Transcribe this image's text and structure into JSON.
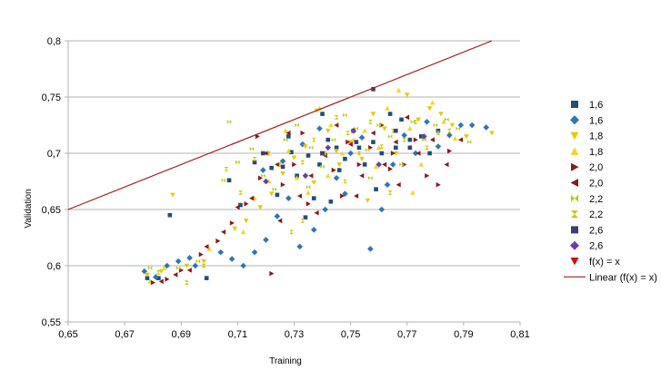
{
  "chart_data": {
    "type": "scatter",
    "xlabel": "Training",
    "ylabel": "Validation",
    "xlim": [
      0.65,
      0.81
    ],
    "ylim": [
      0.55,
      0.8
    ],
    "x_ticks": [
      0.65,
      0.67,
      0.69,
      0.71,
      0.73,
      0.75,
      0.77,
      0.79,
      0.81
    ],
    "x_tick_labels": [
      "0,65",
      "0,67",
      "0,69",
      "0,71",
      "0,73",
      "0,75",
      "0,77",
      "0,79",
      "0,81"
    ],
    "y_ticks": [
      0.55,
      0.6,
      0.65,
      0.7,
      0.75,
      0.8
    ],
    "y_tick_labels": [
      "0,55",
      "0,6",
      "0,65",
      "0,7",
      "0,75",
      "0,8"
    ],
    "grid": "horizontal",
    "legend_position": "right",
    "series": [
      {
        "name": "1,6",
        "marker": "square",
        "color": "#1f4e79",
        "points": [
          [
            0.678,
            0.589
          ],
          [
            0.682,
            0.589
          ],
          [
            0.686,
            0.645
          ],
          [
            0.699,
            0.589
          ],
          [
            0.707,
            0.676
          ],
          [
            0.711,
            0.654
          ],
          [
            0.716,
            0.692
          ],
          [
            0.719,
            0.7
          ],
          [
            0.724,
            0.663
          ],
          [
            0.728,
            0.715
          ],
          [
            0.731,
            0.68
          ],
          [
            0.734,
            0.643
          ],
          [
            0.737,
            0.66
          ],
          [
            0.739,
            0.69
          ],
          [
            0.74,
            0.735
          ],
          [
            0.742,
            0.712
          ],
          [
            0.745,
            0.705
          ],
          [
            0.748,
            0.695
          ],
          [
            0.751,
            0.72
          ],
          [
            0.753,
            0.705
          ],
          [
            0.755,
            0.69
          ],
          [
            0.758,
            0.71
          ],
          [
            0.761,
            0.7
          ],
          [
            0.764,
            0.735
          ],
          [
            0.766,
            0.705
          ],
          [
            0.768,
            0.73
          ],
          [
            0.771,
            0.712
          ],
          [
            0.775,
            0.715
          ],
          [
            0.778,
            0.7
          ],
          [
            0.781,
            0.72
          ],
          [
            0.746,
            0.685
          ],
          [
            0.735,
            0.698
          ],
          [
            0.759,
            0.668
          ],
          [
            0.722,
            0.687
          ],
          [
            0.743,
            0.657
          ],
          [
            0.729,
            0.701
          ]
        ]
      },
      {
        "name": "1,6",
        "marker": "diamond",
        "color": "#2e75b6",
        "points": [
          [
            0.677,
            0.595
          ],
          [
            0.681,
            0.59
          ],
          [
            0.685,
            0.6
          ],
          [
            0.689,
            0.604
          ],
          [
            0.693,
            0.607
          ],
          [
            0.695,
            0.6
          ],
          [
            0.704,
            0.612
          ],
          [
            0.708,
            0.606
          ],
          [
            0.712,
            0.6
          ],
          [
            0.716,
            0.612
          ],
          [
            0.72,
            0.623
          ],
          [
            0.724,
            0.644
          ],
          [
            0.728,
            0.66
          ],
          [
            0.732,
            0.617
          ],
          [
            0.737,
            0.632
          ],
          [
            0.741,
            0.65
          ],
          [
            0.745,
            0.678
          ],
          [
            0.75,
            0.7
          ],
          [
            0.754,
            0.714
          ],
          [
            0.757,
            0.615
          ],
          [
            0.761,
            0.65
          ],
          [
            0.765,
            0.69
          ],
          [
            0.769,
            0.716
          ],
          [
            0.773,
            0.7
          ],
          [
            0.777,
            0.728
          ],
          [
            0.781,
            0.706
          ],
          [
            0.785,
            0.716
          ],
          [
            0.789,
            0.725
          ],
          [
            0.793,
            0.725
          ],
          [
            0.798,
            0.723
          ],
          [
            0.739,
            0.722
          ],
          [
            0.726,
            0.693
          ],
          [
            0.748,
            0.664
          ],
          [
            0.763,
            0.672
          ],
          [
            0.719,
            0.685
          ],
          [
            0.733,
            0.708
          ]
        ]
      },
      {
        "name": "1,8",
        "marker": "triangle-down",
        "color": "#e8c800",
        "points": [
          [
            0.678,
            0.592
          ],
          [
            0.683,
            0.595
          ],
          [
            0.687,
            0.663
          ],
          [
            0.692,
            0.6
          ],
          [
            0.698,
            0.604
          ],
          [
            0.709,
            0.633
          ],
          [
            0.713,
            0.64
          ],
          [
            0.718,
            0.652
          ],
          [
            0.722,
            0.664
          ],
          [
            0.726,
            0.682
          ],
          [
            0.73,
            0.696
          ],
          [
            0.734,
            0.706
          ],
          [
            0.738,
            0.738
          ],
          [
            0.742,
            0.72
          ],
          [
            0.746,
            0.69
          ],
          [
            0.75,
            0.71
          ],
          [
            0.754,
            0.695
          ],
          [
            0.758,
            0.735
          ],
          [
            0.762,
            0.722
          ],
          [
            0.766,
            0.7
          ],
          [
            0.77,
            0.752
          ],
          [
            0.774,
            0.73
          ],
          [
            0.778,
            0.74
          ],
          [
            0.782,
            0.735
          ],
          [
            0.786,
            0.725
          ],
          [
            0.791,
            0.715
          ],
          [
            0.8,
            0.718
          ],
          [
            0.737,
            0.674
          ],
          [
            0.756,
            0.658
          ],
          [
            0.745,
            0.702
          ]
        ]
      },
      {
        "name": "1,8",
        "marker": "triangle-up",
        "color": "#f2d52c",
        "points": [
          [
            0.679,
            0.586
          ],
          [
            0.684,
            0.598
          ],
          [
            0.7,
            0.615
          ],
          [
            0.712,
            0.63
          ],
          [
            0.716,
            0.66
          ],
          [
            0.721,
            0.675
          ],
          [
            0.727,
            0.72
          ],
          [
            0.731,
            0.678
          ],
          [
            0.735,
            0.665
          ],
          [
            0.739,
            0.74
          ],
          [
            0.743,
            0.725
          ],
          [
            0.747,
            0.7
          ],
          [
            0.751,
            0.712
          ],
          [
            0.755,
            0.72
          ],
          [
            0.759,
            0.688
          ],
          [
            0.763,
            0.74
          ],
          [
            0.767,
            0.756
          ],
          [
            0.771,
            0.722
          ],
          [
            0.775,
            0.69
          ],
          [
            0.779,
            0.745
          ],
          [
            0.783,
            0.728
          ],
          [
            0.787,
            0.713
          ],
          [
            0.772,
            0.665
          ],
          [
            0.76,
            0.705
          ],
          [
            0.742,
            0.68
          ],
          [
            0.728,
            0.702
          ]
        ]
      },
      {
        "name": "2,0",
        "marker": "triangle-right",
        "color": "#8b1a1a",
        "points": [
          [
            0.68,
            0.585
          ],
          [
            0.685,
            0.588
          ],
          [
            0.69,
            0.596
          ],
          [
            0.697,
            0.61
          ],
          [
            0.703,
            0.622
          ],
          [
            0.708,
            0.638
          ],
          [
            0.713,
            0.655
          ],
          [
            0.718,
            0.678
          ],
          [
            0.722,
            0.593
          ],
          [
            0.726,
            0.672
          ],
          [
            0.73,
            0.69
          ],
          [
            0.735,
            0.655
          ],
          [
            0.74,
            0.7
          ],
          [
            0.744,
            0.685
          ],
          [
            0.749,
            0.71
          ],
          [
            0.753,
            0.69
          ],
          [
            0.757,
            0.705
          ],
          [
            0.761,
            0.725
          ],
          [
            0.765,
            0.7
          ],
          [
            0.769,
            0.69
          ],
          [
            0.773,
            0.712
          ],
          [
            0.777,
            0.68
          ],
          [
            0.781,
            0.672
          ],
          [
            0.785,
            0.702
          ],
          [
            0.717,
            0.715
          ],
          [
            0.733,
            0.718
          ],
          [
            0.747,
            0.662
          ],
          [
            0.764,
            0.686
          ]
        ]
      },
      {
        "name": "2,0",
        "marker": "triangle-left",
        "color": "#8b1a1a",
        "points": [
          [
            0.683,
            0.586
          ],
          [
            0.688,
            0.592
          ],
          [
            0.693,
            0.596
          ],
          [
            0.699,
            0.617
          ],
          [
            0.705,
            0.63
          ],
          [
            0.71,
            0.652
          ],
          [
            0.715,
            0.66
          ],
          [
            0.72,
            0.7
          ],
          [
            0.724,
            0.69
          ],
          [
            0.728,
            0.718
          ],
          [
            0.732,
            0.662
          ],
          [
            0.736,
            0.68
          ],
          [
            0.741,
            0.698
          ],
          [
            0.745,
            0.725
          ],
          [
            0.75,
            0.708
          ],
          [
            0.754,
            0.68
          ],
          [
            0.758,
            0.718
          ],
          [
            0.762,
            0.69
          ],
          [
            0.766,
            0.71
          ],
          [
            0.77,
            0.732
          ],
          [
            0.774,
            0.7
          ],
          [
            0.779,
            0.712
          ],
          [
            0.784,
            0.69
          ],
          [
            0.789,
            0.712
          ],
          [
            0.725,
            0.64
          ],
          [
            0.738,
            0.647
          ],
          [
            0.752,
            0.662
          ],
          [
            0.767,
            0.672
          ]
        ]
      },
      {
        "name": "2,2",
        "marker": "bowtie",
        "color": "#b5cc18",
        "points": [
          [
            0.679,
            0.598
          ],
          [
            0.689,
            0.598
          ],
          [
            0.696,
            0.604
          ],
          [
            0.705,
            0.676
          ],
          [
            0.71,
            0.692
          ],
          [
            0.715,
            0.704
          ],
          [
            0.719,
            0.68
          ],
          [
            0.723,
            0.668
          ],
          [
            0.727,
            0.712
          ],
          [
            0.731,
            0.725
          ],
          [
            0.736,
            0.705
          ],
          [
            0.74,
            0.688
          ],
          [
            0.744,
            0.712
          ],
          [
            0.748,
            0.734
          ],
          [
            0.752,
            0.722
          ],
          [
            0.756,
            0.703
          ],
          [
            0.76,
            0.725
          ],
          [
            0.764,
            0.715
          ],
          [
            0.768,
            0.69
          ],
          [
            0.772,
            0.728
          ],
          [
            0.776,
            0.712
          ],
          [
            0.78,
            0.725
          ],
          [
            0.784,
            0.73
          ],
          [
            0.788,
            0.722
          ],
          [
            0.792,
            0.71
          ],
          [
            0.707,
            0.728
          ],
          [
            0.735,
            0.67
          ],
          [
            0.757,
            0.678
          ]
        ]
      },
      {
        "name": "2,2",
        "marker": "hourglass",
        "color": "#c8c800",
        "points": [
          [
            0.682,
            0.594
          ],
          [
            0.692,
            0.585
          ],
          [
            0.698,
            0.6
          ],
          [
            0.706,
            0.686
          ],
          [
            0.711,
            0.665
          ],
          [
            0.716,
            0.695
          ],
          [
            0.721,
            0.7
          ],
          [
            0.725,
            0.69
          ],
          [
            0.729,
            0.63
          ],
          [
            0.733,
            0.692
          ],
          [
            0.737,
            0.712
          ],
          [
            0.741,
            0.7
          ],
          [
            0.745,
            0.732
          ],
          [
            0.749,
            0.718
          ],
          [
            0.753,
            0.7
          ],
          [
            0.757,
            0.728
          ],
          [
            0.761,
            0.706
          ],
          [
            0.765,
            0.72
          ],
          [
            0.769,
            0.712
          ],
          [
            0.773,
            0.728
          ],
          [
            0.777,
            0.705
          ],
          [
            0.781,
            0.718
          ],
          [
            0.785,
            0.72
          ],
          [
            0.733,
            0.64
          ],
          [
            0.748,
            0.675
          ],
          [
            0.764,
            0.665
          ]
        ]
      },
      {
        "name": "2,6",
        "marker": "square",
        "color": "#3c3c7a",
        "points": [
          [
            0.758,
            0.757
          ],
          [
            0.74,
            0.7
          ],
          [
            0.752,
            0.71
          ],
          [
            0.766,
            0.72
          ],
          [
            0.726,
            0.688
          ],
          [
            0.771,
            0.705
          ]
        ]
      },
      {
        "name": "2,6",
        "marker": "diamond",
        "color": "#6b3fa0",
        "points": [
          [
            0.742,
            0.705
          ],
          [
            0.751,
            0.72
          ],
          [
            0.76,
            0.69
          ],
          [
            0.734,
            0.68
          ],
          [
            0.776,
            0.715
          ],
          [
            0.72,
            0.675
          ]
        ]
      },
      {
        "name": "f(x) = x",
        "marker": "triangle-down",
        "color": "#cc1111",
        "points": []
      },
      {
        "name": "Linear (f(x) = x)",
        "marker": "line",
        "color": "#a01c1c",
        "points": [
          [
            0.65,
            0.65
          ],
          [
            0.8,
            0.8
          ]
        ]
      }
    ]
  }
}
